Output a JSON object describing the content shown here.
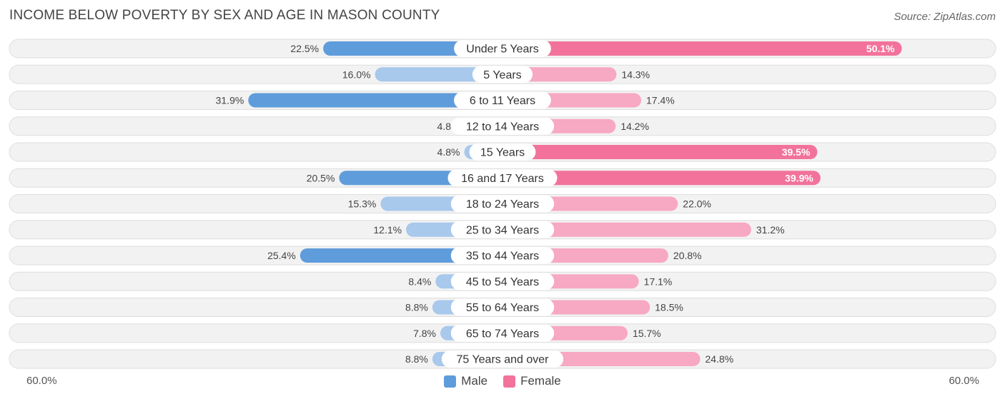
{
  "title": "INCOME BELOW POVERTY BY SEX AND AGE IN MASON COUNTY",
  "source": "Source: ZipAtlas.com",
  "axis": {
    "left_label": "60.0%",
    "right_label": "60.0%"
  },
  "legend": {
    "male": "Male",
    "female": "Female"
  },
  "colors": {
    "male_strong": "#5f9cdb",
    "male_light": "#a8c8ec",
    "female_strong": "#f2729b",
    "female_light": "#f7a8c2",
    "row_bg": "#f2f2f2",
    "row_border": "#dedede"
  },
  "chart_data": {
    "type": "bar",
    "orientation": "diverging-horizontal",
    "title": "INCOME BELOW POVERTY BY SEX AND AGE IN MASON COUNTY",
    "xlim": [
      -60,
      60
    ],
    "categories": [
      "Under 5 Years",
      "5 Years",
      "6 to 11 Years",
      "12 to 14 Years",
      "15 Years",
      "16 and 17 Years",
      "18 to 24 Years",
      "25 to 34 Years",
      "35 to 44 Years",
      "45 to 54 Years",
      "55 to 64 Years",
      "65 to 74 Years",
      "75 Years and over"
    ],
    "series": [
      {
        "name": "Male",
        "values": [
          22.5,
          16.0,
          31.9,
          4.8,
          4.8,
          20.5,
          15.3,
          12.1,
          25.4,
          8.4,
          8.8,
          7.8,
          8.8
        ],
        "labels": [
          "22.5%",
          "16.0%",
          "31.9%",
          "4.8%",
          "4.8%",
          "20.5%",
          "15.3%",
          "12.1%",
          "25.4%",
          "8.4%",
          "8.8%",
          "7.8%",
          "8.8%"
        ]
      },
      {
        "name": "Female",
        "values": [
          50.1,
          14.3,
          17.4,
          14.2,
          39.5,
          39.9,
          22.0,
          31.2,
          20.8,
          17.1,
          18.5,
          15.7,
          24.8
        ],
        "labels": [
          "50.1%",
          "14.3%",
          "17.4%",
          "14.2%",
          "39.5%",
          "39.9%",
          "22.0%",
          "31.2%",
          "20.8%",
          "17.1%",
          "18.5%",
          "15.7%",
          "24.8%"
        ]
      }
    ]
  }
}
